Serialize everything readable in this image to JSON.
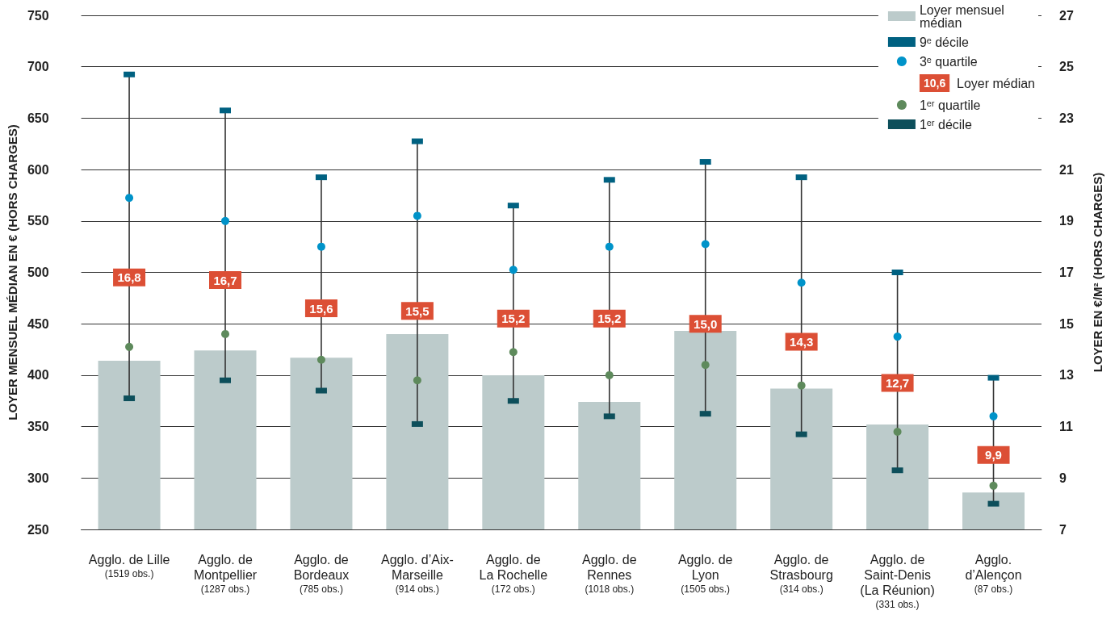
{
  "chart_data": {
    "type": "bar",
    "ylabel": "LOYER MENSUEL MÉDIAN EN € (HORS CHARGES)",
    "y2label": "LOYER EN €/M² (HORS CHARGES)",
    "categories": [
      "Agglo. de Lille\n(1519 obs.)",
      "Agglo. de\nMontpellier\n(1287 obs.)",
      "Agglo. de\nBordeaux\n(785 obs.)",
      "Agglo. d’Aix-\nMarseille\n(914 obs.)",
      "Agglo. de\nLa Rochelle\n(172 obs.)",
      "Agglo. de\nRennes\n(1018 obs.)",
      "Agglo. de\nLyon\n(1505 obs.)",
      "Agglo. de\nStrasbourg\n(314 obs.)",
      "Agglo. de\nSaint-Denis\n(La Réunion)\n(331 obs.)",
      "Agglo.\nd’Alençon\n(87 obs.)"
    ],
    "series": [
      {
        "name": "Loyer mensuel\nmédian",
        "color": "#bccbcb",
        "values": [
          414,
          424,
          417,
          440,
          400,
          374,
          443,
          387,
          352,
          286
        ]
      },
      {
        "name": "9ᵉ décile",
        "type": "scatter",
        "axis": "y2",
        "color": "#006181",
        "values": [
          24.7,
          23.3,
          20.7,
          22.1,
          19.6,
          20.6,
          21.3,
          20.7,
          17.0,
          12.9
        ]
      },
      {
        "name": "3ᵉ quartile",
        "type": "scatter",
        "axis": "y2",
        "marker": "circle",
        "color": "#0093c9",
        "values": [
          19.9,
          19.0,
          18.0,
          19.2,
          17.1,
          18.0,
          18.1,
          16.6,
          14.5,
          11.4
        ]
      },
      {
        "name": "Loyer médian",
        "type": "scatter",
        "axis": "y2",
        "marker": "square",
        "color": "#dc4f35",
        "values": [
          16.8,
          16.7,
          15.6,
          15.5,
          15.2,
          15.2,
          15.0,
          14.3,
          12.7,
          9.9
        ],
        "value_labels": [
          "16,8",
          "16,7",
          "15,6",
          "15,5",
          "15,2",
          "15,2",
          "15,0",
          "14,3",
          "12,7",
          "9,9"
        ]
      },
      {
        "name": "1ᵉʳ quartile",
        "type": "scatter",
        "axis": "y2",
        "marker": "circle",
        "color": "#5e8a5c",
        "values": [
          14.1,
          14.6,
          13.6,
          12.8,
          13.9,
          13.0,
          13.4,
          12.6,
          10.8,
          8.7
        ]
      },
      {
        "name": "1ᵉʳ décile",
        "type": "scatter",
        "axis": "y2",
        "color": "#0d4f5b",
        "values": [
          12.1,
          12.8,
          12.4,
          11.1,
          12.0,
          11.4,
          11.5,
          10.7,
          9.3,
          8.0
        ]
      }
    ],
    "ylim": [
      250,
      750
    ],
    "yticks": [
      250,
      300,
      350,
      400,
      450,
      500,
      550,
      600,
      650,
      700,
      750
    ],
    "y2lim": [
      7,
      27
    ],
    "y2ticks": [
      7,
      9,
      11,
      13,
      15,
      17,
      19,
      21,
      23,
      25,
      27
    ],
    "annotations": [
      "10,6"
    ],
    "grid": "y",
    "legend": "top right"
  }
}
